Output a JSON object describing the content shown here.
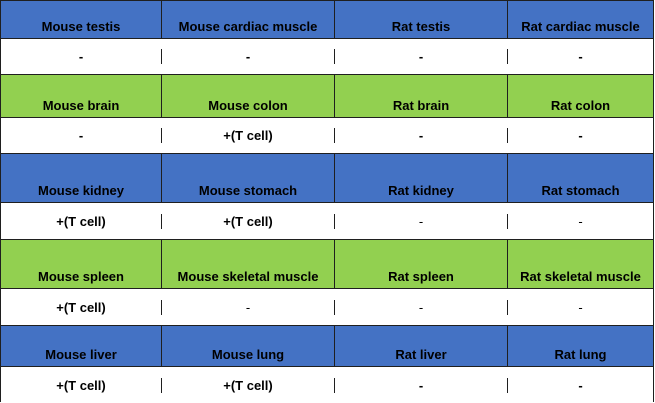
{
  "rows": [
    {
      "type": "header",
      "color": "#4472c4",
      "cells": [
        "Mouse testis",
        "Mouse cardiac muscle",
        "Rat testis",
        "Rat cardiac muscle"
      ]
    },
    {
      "type": "value",
      "cells": [
        "-",
        "-",
        "-",
        "-"
      ]
    },
    {
      "type": "header",
      "color": "#92d050",
      "cells": [
        "Mouse brain",
        "Mouse colon",
        "Rat brain",
        "Rat colon"
      ]
    },
    {
      "type": "value",
      "cells": [
        "-",
        "+(T cell)",
        "-",
        "-"
      ]
    },
    {
      "type": "header",
      "color": "#4472c4",
      "cells": [
        "Mouse kidney",
        "Mouse stomach",
        "Rat kidney",
        "Rat stomach"
      ]
    },
    {
      "type": "value",
      "cells": [
        "+(T cell)",
        "+(T cell)",
        "-",
        "-"
      ]
    },
    {
      "type": "header",
      "color": "#92d050",
      "cells": [
        "Mouse spleen",
        "Mouse skeletal muscle",
        "Rat spleen",
        "Rat skeletal muscle"
      ]
    },
    {
      "type": "value",
      "cells": [
        "+(T cell)",
        "-",
        "-",
        "-"
      ]
    },
    {
      "type": "header",
      "color": "#4472c4",
      "cells": [
        "Mouse liver",
        "Mouse lung",
        "Rat liver",
        "Rat lung"
      ]
    },
    {
      "type": "value",
      "cells": [
        "+(T cell)",
        "+(T cell)",
        "-",
        "-"
      ]
    }
  ]
}
